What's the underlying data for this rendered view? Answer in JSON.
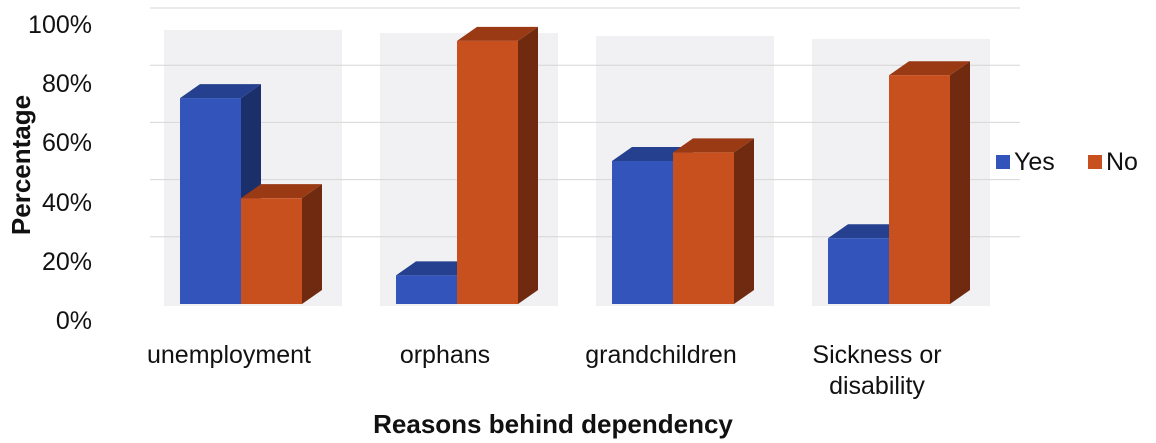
{
  "chart_data": {
    "type": "bar",
    "categories": [
      [
        "unemployment"
      ],
      [
        "orphans"
      ],
      [
        "grandchildren"
      ],
      [
        "Sickness or",
        "disability"
      ]
    ],
    "series": [
      {
        "name": "Yes",
        "values": [
          72,
          10,
          50,
          23
        ],
        "color": "#3355bb",
        "top": "#24408f",
        "side": "#1b2f6b"
      },
      {
        "name": "No",
        "values": [
          37,
          92,
          53,
          80
        ],
        "color": "#c8501e",
        "top": "#9a3a14",
        "side": "#6f2a10"
      }
    ],
    "ylabel": "Percentage",
    "xlabel": "Reasons behind dependency",
    "ylim": [
      0,
      100
    ],
    "ytick_labels": [
      "0%",
      "20%",
      "40%",
      "60%",
      "80%",
      "100%"
    ],
    "grid": true,
    "legend_position": "right",
    "plot_style": "3d-clustered-column"
  }
}
